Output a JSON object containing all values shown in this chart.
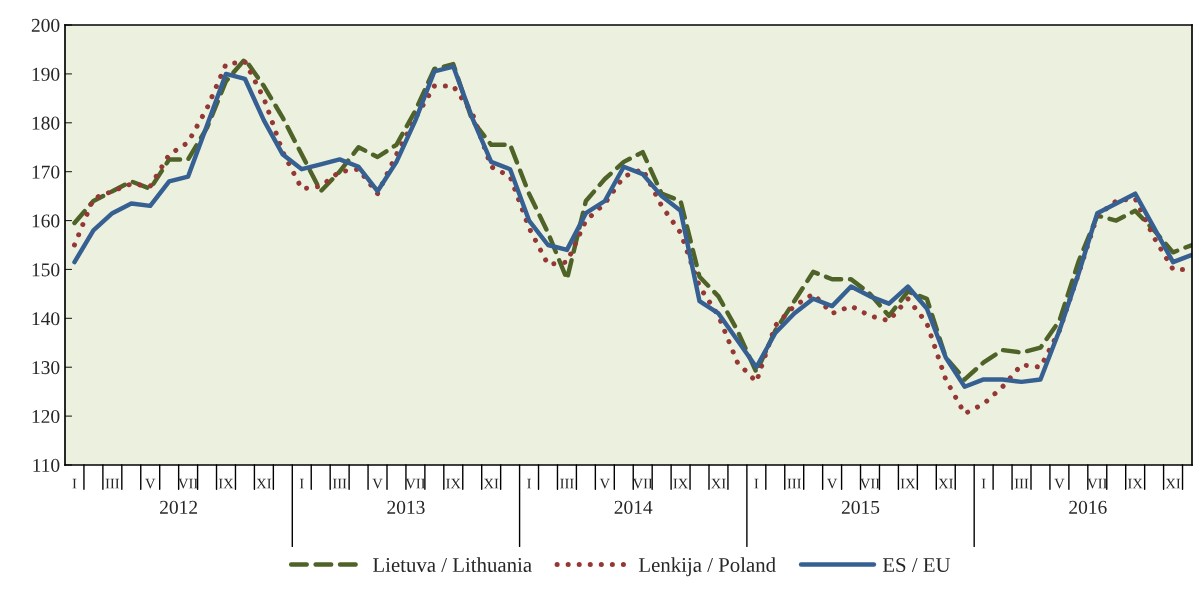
{
  "chart_data": {
    "type": "line",
    "categories": [
      "I",
      null,
      "III",
      null,
      "V",
      null,
      "VII",
      null,
      "IX",
      null,
      "XI",
      null,
      "I",
      null,
      "III",
      null,
      "V",
      null,
      "VII",
      null,
      "IX",
      null,
      "XI",
      null,
      "I",
      null,
      "III",
      null,
      "V",
      null,
      "VII",
      null,
      "IX",
      null,
      "XI",
      null,
      "I",
      null,
      "III",
      null,
      "V",
      null,
      "VII",
      null,
      "IX",
      null,
      "XI",
      null,
      "I",
      null,
      "III",
      null,
      "V",
      null,
      "VII",
      null,
      "IX",
      null,
      "XI",
      null
    ],
    "annotations": [
      "2012",
      "2013",
      "2014",
      "2015",
      "2016"
    ],
    "series": [
      {
        "name": "Lietuva / Lithuania",
        "color": "#4f6228",
        "line_style": "dashed",
        "values": [
          159.5,
          164,
          166,
          168,
          166.5,
          172.5,
          172.5,
          179,
          188.5,
          193,
          187.5,
          181,
          173.5,
          166,
          170,
          175,
          173,
          175.5,
          182.5,
          191,
          192,
          180.5,
          175.5,
          175.5,
          165.5,
          157.5,
          148,
          164,
          168.5,
          172,
          174,
          165.5,
          164,
          148.5,
          144.5,
          137.5,
          129,
          137.5,
          143.5,
          149.5,
          148,
          148,
          145,
          140.5,
          145.5,
          144,
          132,
          127.5,
          131,
          133.5,
          133,
          134,
          139.5,
          151.5,
          161,
          160,
          162,
          158,
          153.5,
          155
        ]
      },
      {
        "name": "Lenkija / Poland",
        "color": "#953735",
        "line_style": "dotted",
        "values": [
          155,
          164.5,
          166,
          167.5,
          167,
          173.5,
          176,
          183,
          192,
          192.5,
          185,
          174,
          166.5,
          167,
          170,
          170.5,
          165.5,
          173.5,
          181,
          187.5,
          187.5,
          182,
          171,
          169,
          158.5,
          151,
          151.5,
          160,
          163.5,
          169,
          170.5,
          163,
          157.5,
          146.5,
          140.5,
          131,
          127,
          138.5,
          142.5,
          145,
          141,
          142.5,
          140.5,
          139.5,
          144,
          139,
          127.5,
          120.5,
          122.5,
          126,
          130.5,
          130,
          137.5,
          149,
          161,
          164,
          164.5,
          156.5,
          150,
          150
        ]
      },
      {
        "name": "ES / EU",
        "color": "#376092",
        "line_style": "solid",
        "values": [
          151.5,
          158,
          161.5,
          163.5,
          163,
          168,
          169,
          179.5,
          190,
          189,
          180.5,
          173.5,
          170.5,
          171.5,
          172.5,
          171,
          166,
          172,
          180.5,
          190.5,
          191.5,
          181,
          172,
          170.5,
          160,
          155,
          154,
          161.5,
          164,
          171,
          169.5,
          165,
          162,
          143.5,
          141,
          135.5,
          130,
          137,
          141,
          144,
          142.5,
          146.5,
          144.5,
          143,
          146.5,
          142,
          132,
          126,
          127.5,
          127.5,
          127,
          127.5,
          137.5,
          149,
          161.5,
          163.5,
          165.5,
          158.5,
          151.5,
          153
        ]
      }
    ],
    "ylim": [
      110,
      200
    ],
    "yticks": [
      110,
      120,
      130,
      140,
      150,
      160,
      170,
      180,
      190,
      200
    ],
    "grid": false,
    "legend": "bottom"
  }
}
